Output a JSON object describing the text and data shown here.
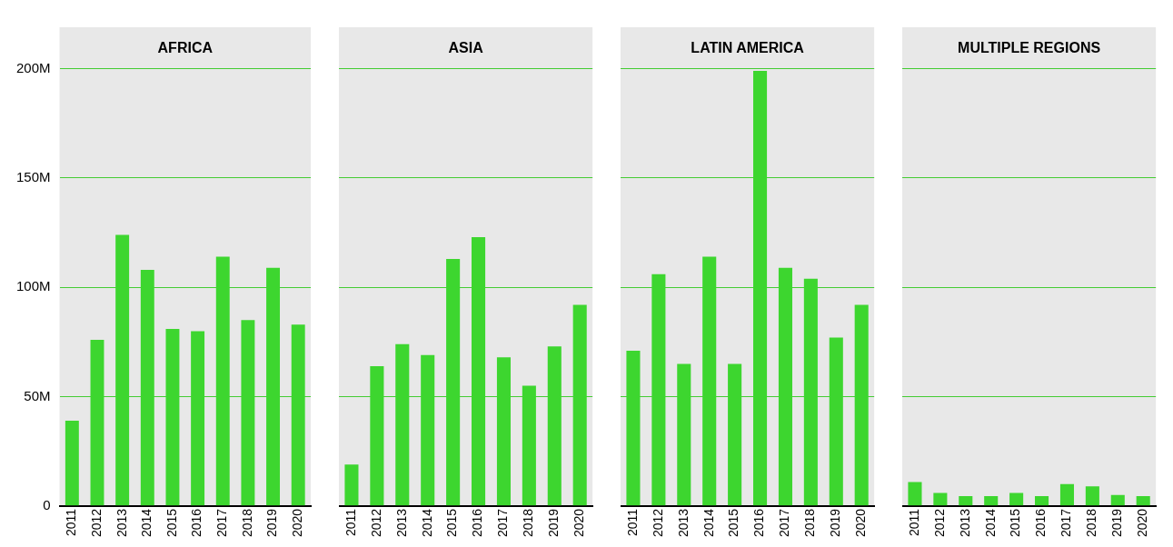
{
  "chart_data": [
    {
      "type": "bar",
      "title": "AFRICA",
      "categories": [
        "2011",
        "2012",
        "2013",
        "2014",
        "2015",
        "2016",
        "2017",
        "2018",
        "2019",
        "2020"
      ],
      "values": [
        39,
        76,
        124,
        108,
        81,
        80,
        114,
        85,
        109,
        83
      ],
      "color": "#3dd62f",
      "ylim": [
        0,
        219
      ],
      "yticks": [
        0,
        {
          "value": 50,
          "label": "50M"
        },
        {
          "value": 100,
          "label": "100M"
        },
        {
          "value": 150,
          "label": "150M"
        },
        {
          "value": 200,
          "label": "200M"
        }
      ],
      "grid": "y"
    },
    {
      "type": "bar",
      "title": "ASIA",
      "categories": [
        "2011",
        "2012",
        "2013",
        "2014",
        "2015",
        "2016",
        "2017",
        "2018",
        "2019",
        "2020"
      ],
      "values": [
        19,
        64,
        74,
        69,
        113,
        123,
        68,
        55,
        73,
        92
      ],
      "color": "#3dd62f",
      "ylim": [
        0,
        219
      ],
      "yticks": [
        0,
        50,
        100,
        150,
        200
      ],
      "grid": "y",
      "tick_labels": "x"
    },
    {
      "type": "bar",
      "title": "LATIN AMERICA",
      "categories": [
        "2011",
        "2012",
        "2013",
        "2014",
        "2015",
        "2016",
        "2017",
        "2018",
        "2019",
        "2020"
      ],
      "values": [
        71,
        106,
        65,
        114,
        65,
        199,
        109,
        104,
        77,
        92
      ],
      "color": "#3dd62f",
      "ylim": [
        0,
        219
      ],
      "yticks": [
        0,
        50,
        100,
        150,
        200
      ],
      "grid": "y",
      "tick_labels": "x"
    },
    {
      "type": "bar",
      "title": "MULTIPLE REGIONS",
      "categories": [
        "2011",
        "2012",
        "2013",
        "2014",
        "2015",
        "2016",
        "2017",
        "2018",
        "2019",
        "2020"
      ],
      "values": [
        11,
        6,
        4.5,
        4.5,
        6,
        4.5,
        10,
        9,
        5,
        4.5
      ],
      "color": "#3dd62f",
      "ylim": [
        0,
        219
      ],
      "yticks": [
        0,
        50,
        100,
        150,
        200
      ],
      "grid": "y",
      "tick_labels": "x"
    }
  ]
}
